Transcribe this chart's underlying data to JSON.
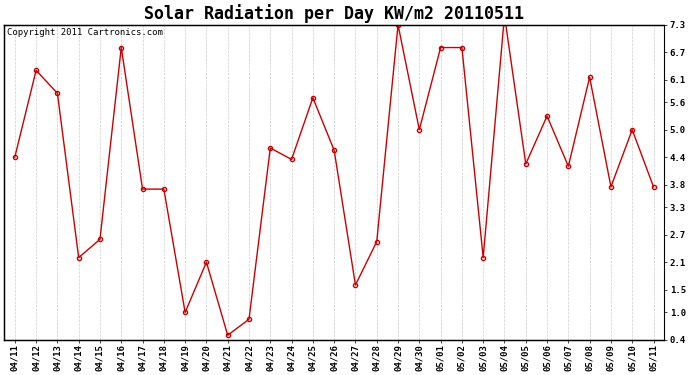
{
  "title": "Solar Radiation per Day KW/m2 20110511",
  "copyright": "Copyright 2011 Cartronics.com",
  "labels": [
    "04/11",
    "04/12",
    "04/13",
    "04/14",
    "04/15",
    "04/16",
    "04/17",
    "04/18",
    "04/19",
    "04/20",
    "04/21",
    "04/22",
    "04/23",
    "04/24",
    "04/25",
    "04/26",
    "04/27",
    "04/28",
    "04/29",
    "04/30",
    "05/01",
    "05/02",
    "05/03",
    "05/04",
    "05/05",
    "05/06",
    "05/07",
    "05/08",
    "05/09",
    "05/10",
    "05/11"
  ],
  "values": [
    4.4,
    6.3,
    5.8,
    2.2,
    2.6,
    6.8,
    3.7,
    3.7,
    1.0,
    2.1,
    0.5,
    0.85,
    4.6,
    4.35,
    5.7,
    4.55,
    1.6,
    2.55,
    7.3,
    5.0,
    6.8,
    6.8,
    2.2,
    7.5,
    4.25,
    5.3,
    4.2,
    6.15,
    3.75,
    5.0,
    3.75
  ],
  "line_color": "#cc0000",
  "marker": "o",
  "marker_color": "#cc0000",
  "marker_size": 3,
  "ylim": [
    0.4,
    7.3
  ],
  "yticks": [
    0.4,
    1.0,
    1.5,
    2.1,
    2.7,
    3.3,
    3.8,
    4.4,
    5.0,
    5.6,
    6.1,
    6.7,
    7.3
  ],
  "grid_color": "#cccccc",
  "bg_color": "#ffffff",
  "title_fontsize": 12,
  "tick_fontsize": 6.5,
  "copyright_fontsize": 6.5
}
